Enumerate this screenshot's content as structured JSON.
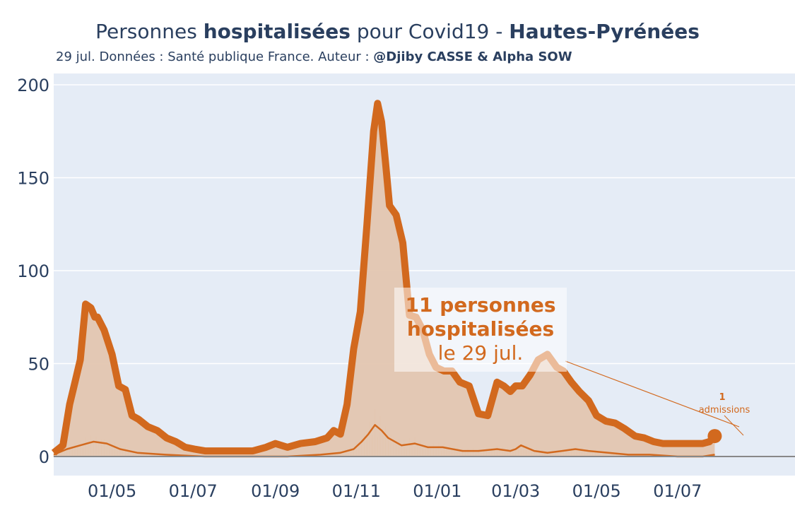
{
  "title": {
    "part1": "Personnes ",
    "part2": "hospitalisées",
    "part3": " pour Covid19 - ",
    "part4": "Hautes-Pyrénées"
  },
  "subtitle": {
    "text": "29 jul. Données : Santé publique France. Auteur : ",
    "author": "@Djiby CASSE & Alpha SOW"
  },
  "callout": {
    "line1": "11 personnes",
    "line2": "hospitalisées",
    "line3": "le 29 jul."
  },
  "admissions_label": {
    "count": "1",
    "label": "admissions"
  },
  "colors": {
    "main": "#d2691e",
    "fill": "#e3c6b0",
    "plot_bg": "#e5ecf6",
    "axis_text": "#2a3f5f"
  },
  "chart_data": {
    "type": "line",
    "ylim": [
      -10,
      200
    ],
    "y_ticks": [
      "0",
      "50",
      "100",
      "150",
      "200"
    ],
    "x_ticks": [
      "01/05",
      "01/07",
      "01/09",
      "01/11",
      "01/01",
      "01/03",
      "01/05",
      "01/07"
    ],
    "x_tick_dates": [
      "2020-05-01",
      "2020-07-01",
      "2020-09-01",
      "2020-11-01",
      "2021-01-01",
      "2021-03-01",
      "2021-05-01",
      "2021-07-01"
    ],
    "x_range": [
      "2020-03-18",
      "2021-09-28"
    ],
    "series": [
      {
        "role": "hospitalisations",
        "x": [
          "2020-03-18",
          "2020-03-25",
          "2020-03-30",
          "2020-04-03",
          "2020-04-07",
          "2020-04-11",
          "2020-04-15",
          "2020-04-18",
          "2020-04-20",
          "2020-04-25",
          "2020-05-01",
          "2020-05-06",
          "2020-05-11",
          "2020-05-16",
          "2020-05-21",
          "2020-05-28",
          "2020-06-04",
          "2020-06-11",
          "2020-06-18",
          "2020-06-25",
          "2020-07-02",
          "2020-07-10",
          "2020-07-20",
          "2020-08-01",
          "2020-08-15",
          "2020-08-25",
          "2020-09-01",
          "2020-09-10",
          "2020-09-20",
          "2020-10-01",
          "2020-10-10",
          "2020-10-15",
          "2020-10-20",
          "2020-10-25",
          "2020-10-30",
          "2020-11-04",
          "2020-11-09",
          "2020-11-14",
          "2020-11-17",
          "2020-11-20",
          "2020-11-23",
          "2020-11-26",
          "2020-12-01",
          "2020-12-06",
          "2020-12-11",
          "2020-12-16",
          "2020-12-21",
          "2020-12-26",
          "2020-12-31",
          "2021-01-06",
          "2021-01-12",
          "2021-01-18",
          "2021-01-25",
          "2021-02-01",
          "2021-02-08",
          "2021-02-15",
          "2021-02-20",
          "2021-02-25",
          "2021-03-01",
          "2021-03-06",
          "2021-03-12",
          "2021-03-18",
          "2021-03-25",
          "2021-04-01",
          "2021-04-06",
          "2021-04-12",
          "2021-04-18",
          "2021-04-25",
          "2021-05-01",
          "2021-05-08",
          "2021-05-15",
          "2021-05-22",
          "2021-05-30",
          "2021-06-06",
          "2021-06-13",
          "2021-06-20",
          "2021-06-27",
          "2021-07-05",
          "2021-07-12",
          "2021-07-20",
          "2021-07-25",
          "2021-07-29"
        ],
        "y": [
          2,
          6,
          28,
          40,
          52,
          82,
          80,
          75,
          75,
          68,
          55,
          38,
          36,
          22,
          20,
          16,
          14,
          10,
          8,
          5,
          4,
          3,
          3,
          3,
          3,
          5,
          7,
          5,
          7,
          8,
          10,
          14,
          12,
          28,
          58,
          78,
          125,
          175,
          190,
          180,
          158,
          135,
          130,
          115,
          76,
          75,
          68,
          55,
          48,
          46,
          46,
          40,
          38,
          23,
          22,
          40,
          38,
          35,
          38,
          38,
          44,
          52,
          55,
          48,
          46,
          40,
          35,
          30,
          22,
          19,
          18,
          15,
          11,
          10,
          8,
          7,
          7,
          7,
          7,
          7,
          8,
          11
        ]
      },
      {
        "role": "admissions_moyenne",
        "x": [
          "2020-03-18",
          "2020-03-28",
          "2020-04-07",
          "2020-04-17",
          "2020-04-27",
          "2020-05-07",
          "2020-05-20",
          "2020-06-10",
          "2020-07-10",
          "2020-08-10",
          "2020-09-10",
          "2020-10-05",
          "2020-10-20",
          "2020-10-30",
          "2020-11-05",
          "2020-11-10",
          "2020-11-15",
          "2020-11-20",
          "2020-11-25",
          "2020-12-05",
          "2020-12-15",
          "2020-12-25",
          "2021-01-05",
          "2021-01-20",
          "2021-02-01",
          "2021-02-15",
          "2021-02-25",
          "2021-03-01",
          "2021-03-05",
          "2021-03-15",
          "2021-03-25",
          "2021-04-05",
          "2021-04-15",
          "2021-04-25",
          "2021-05-10",
          "2021-05-25",
          "2021-06-10",
          "2021-07-01",
          "2021-07-20",
          "2021-07-29"
        ],
        "y": [
          1,
          4,
          6,
          8,
          7,
          4,
          2,
          1,
          0,
          0,
          0,
          1,
          2,
          4,
          8,
          12,
          17,
          14,
          10,
          6,
          7,
          5,
          5,
          3,
          3,
          4,
          3,
          4,
          6,
          3,
          2,
          3,
          4,
          3,
          2,
          1,
          1,
          0,
          0,
          1
        ]
      }
    ]
  }
}
